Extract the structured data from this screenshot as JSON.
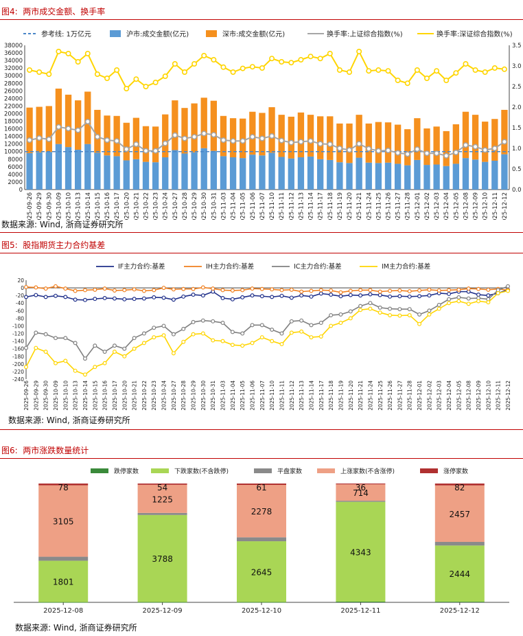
{
  "figures": {
    "fig4": {
      "title": "图4:  两市成交金额、换手率",
      "source": "数据来源: Wind, 浙商证券研究所"
    },
    "fig5": {
      "title": "图5:  股指期货主力合约基差",
      "source": "数据来源: Wind, 浙商证券研究所"
    },
    "fig6": {
      "title": "图6:  两市涨跌数量统计",
      "source": "数据来源: Wind, 浙商证券研究所"
    }
  },
  "chart_data": [
    {
      "id": "fig4",
      "type": "bar",
      "legend": [
        "参考线: 1万亿元",
        "沪市:成交金额(亿元)",
        "深市:成交金额(亿元)",
        "换手率:上证综合指数(%)",
        "换手率:深证综合指数(%)"
      ],
      "categories": [
        "2025-09-26",
        "2025-09-29",
        "2025-09-30",
        "2025-10-09",
        "2025-10-10",
        "2025-10-13",
        "2025-10-14",
        "2025-10-15",
        "2025-10-16",
        "2025-10-17",
        "2025-10-20",
        "2025-10-21",
        "2025-10-22",
        "2025-10-23",
        "2025-10-24",
        "2025-10-27",
        "2025-10-28",
        "2025-10-29",
        "2025-10-30",
        "2025-10-31",
        "2025-11-03",
        "2025-11-04",
        "2025-11-05",
        "2025-11-06",
        "2025-11-07",
        "2025-11-10",
        "2025-11-11",
        "2025-11-12",
        "2025-11-13",
        "2025-11-14",
        "2025-11-17",
        "2025-11-18",
        "2025-11-19",
        "2025-11-20",
        "2025-11-21",
        "2025-11-24",
        "2025-11-25",
        "2025-11-26",
        "2025-11-27",
        "2025-11-28",
        "2025-12-01",
        "2025-12-02",
        "2025-12-03",
        "2025-12-04",
        "2025-12-05",
        "2025-12-08",
        "2025-12-09",
        "2025-12-10",
        "2025-12-11",
        "2025-12-12"
      ],
      "sh": [
        9600,
        9800,
        9900,
        12000,
        11200,
        10500,
        12000,
        9700,
        9000,
        8800,
        7700,
        8000,
        7300,
        7200,
        8500,
        10400,
        9500,
        9800,
        10900,
        10200,
        8800,
        8500,
        8300,
        9200,
        9000,
        9700,
        8600,
        8200,
        8500,
        8700,
        8000,
        7800,
        7200,
        7000,
        8400,
        7100,
        7000,
        7100,
        6800,
        6400,
        7800,
        6500,
        6600,
        6200,
        6800,
        8300,
        7900,
        7300,
        7600,
        9300
      ],
      "sz": [
        12000,
        12000,
        12100,
        14600,
        13800,
        13000,
        13800,
        11300,
        10500,
        10600,
        9900,
        10900,
        9400,
        9400,
        11300,
        13100,
        12000,
        12900,
        13300,
        13200,
        10600,
        10300,
        10400,
        11300,
        11200,
        12000,
        11100,
        11000,
        11800,
        11000,
        11300,
        11500,
        10200,
        10400,
        11300,
        10300,
        10800,
        10600,
        10300,
        9500,
        11000,
        9600,
        10000,
        9200,
        10400,
        12200,
        11800,
        10600,
        11000,
        11700
      ],
      "shTurn": [
        1.2,
        1.25,
        1.22,
        1.52,
        1.48,
        1.44,
        1.65,
        1.28,
        1.2,
        1.18,
        0.98,
        1.1,
        0.94,
        0.94,
        1.12,
        1.32,
        1.24,
        1.28,
        1.36,
        1.33,
        1.2,
        1.18,
        1.18,
        1.28,
        1.24,
        1.3,
        1.19,
        1.14,
        1.16,
        1.18,
        1.11,
        1.1,
        1.0,
        0.96,
        1.11,
        0.99,
        0.94,
        0.95,
        0.89,
        0.86,
        0.98,
        0.88,
        0.88,
        0.82,
        0.9,
        1.08,
        1.04,
        0.96,
        1.0,
        1.16
      ],
      "szTurn": [
        2.9,
        2.85,
        2.8,
        3.35,
        3.3,
        3.1,
        3.3,
        2.8,
        2.7,
        2.9,
        2.45,
        2.68,
        2.5,
        2.6,
        2.75,
        3.05,
        2.85,
        3.05,
        3.25,
        3.15,
        2.97,
        2.85,
        2.94,
        2.98,
        2.95,
        3.18,
        3.1,
        3.08,
        3.15,
        3.23,
        3.18,
        3.3,
        2.9,
        2.85,
        3.35,
        2.88,
        2.9,
        2.88,
        2.65,
        2.58,
        2.9,
        2.7,
        2.88,
        2.65,
        2.83,
        3.05,
        2.9,
        2.85,
        2.95,
        2.92
      ],
      "reference": 10000,
      "ylim": [
        0,
        38000
      ],
      "y2lim": [
        0,
        3.5
      ]
    },
    {
      "id": "fig5",
      "type": "line",
      "legend": [
        "IF主力合约:基差",
        "IH主力合约:基差",
        "IC主力合约:基差",
        "IM主力合约:基差"
      ],
      "categories": [
        "2025-09-26",
        "2025-09-29",
        "2025-09-30",
        "2025-10-09",
        "2025-10-10",
        "2025-10-13",
        "2025-10-14",
        "2025-10-15",
        "2025-10-16",
        "2025-10-17",
        "2025-10-20",
        "2025-10-21",
        "2025-10-22",
        "2025-10-23",
        "2025-10-24",
        "2025-10-27",
        "2025-10-28",
        "2025-10-29",
        "2025-10-30",
        "2025-10-31",
        "2025-11-03",
        "2025-11-04",
        "2025-11-05",
        "2025-11-06",
        "2025-11-07",
        "2025-11-10",
        "2025-11-11",
        "2025-11-12",
        "2025-11-13",
        "2025-11-14",
        "2025-11-17",
        "2025-11-18",
        "2025-11-19",
        "2025-11-20",
        "2025-11-21",
        "2025-11-24",
        "2025-11-25",
        "2025-11-26",
        "2025-11-27",
        "2025-11-28",
        "2025-12-01",
        "2025-12-02",
        "2025-12-03",
        "2025-12-04",
        "2025-12-05",
        "2025-12-08",
        "2025-12-09",
        "2025-12-10",
        "2025-12-11",
        "2025-12-12"
      ],
      "series": [
        {
          "name": "IF主力合约:基差",
          "color": "#1f2f8a",
          "values": [
            -24,
            -19,
            -24,
            -21,
            -24,
            -31,
            -32,
            -29,
            -27,
            -28,
            -30,
            -29,
            -28,
            -25,
            -26,
            -31,
            -23,
            -18,
            -20,
            -10,
            -27,
            -30,
            -25,
            -20,
            -22,
            -24,
            -21,
            -26,
            -20,
            -23,
            -15,
            -18,
            -22,
            -19,
            -20,
            -17,
            -19,
            -23,
            -22,
            -23,
            -22,
            -20,
            -14,
            -16,
            -10,
            -10,
            -18,
            -20,
            -14,
            -5
          ]
        },
        {
          "name": "IH主力合约:基差",
          "color": "#f07f1e",
          "values": [
            2,
            1,
            -2,
            4,
            -2,
            -8,
            -6,
            -5,
            -2,
            -7,
            -6,
            -4,
            -8,
            -6,
            0,
            -4,
            -3,
            -3,
            1,
            -2,
            -6,
            -7,
            -6,
            -2,
            -3,
            -4,
            -6,
            -5,
            -10,
            -8,
            -6,
            -7,
            -12,
            -8,
            -6,
            -6,
            -10,
            -8,
            -7,
            -9,
            -7,
            -5,
            -7,
            -6,
            -5,
            -2,
            -3,
            -5,
            -3,
            -6
          ]
        },
        {
          "name": "IC主力合约:基差",
          "color": "#808080",
          "values": [
            -158,
            -118,
            -122,
            -132,
            -132,
            -145,
            -186,
            -152,
            -168,
            -152,
            -160,
            -132,
            -120,
            -105,
            -100,
            -122,
            -108,
            -90,
            -86,
            -88,
            -92,
            -116,
            -120,
            -98,
            -98,
            -110,
            -120,
            -88,
            -86,
            -98,
            -92,
            -72,
            -70,
            -62,
            -48,
            -40,
            -52,
            -55,
            -56,
            -56,
            -70,
            -60,
            -45,
            -30,
            -25,
            -28,
            -27,
            -30,
            -6,
            4
          ]
        },
        {
          "name": "IM主力合约:基差",
          "color": "#ffd500",
          "values": [
            -208,
            -158,
            -168,
            -198,
            -192,
            -218,
            -228,
            -208,
            -198,
            -168,
            -180,
            -160,
            -145,
            -130,
            -125,
            -172,
            -142,
            -122,
            -120,
            -138,
            -140,
            -150,
            -152,
            -145,
            -130,
            -140,
            -148,
            -118,
            -115,
            -130,
            -128,
            -100,
            -92,
            -80,
            -58,
            -55,
            -65,
            -72,
            -73,
            -72,
            -95,
            -70,
            -55,
            -40,
            -35,
            -42,
            -35,
            -38,
            -14,
            -8
          ]
        }
      ],
      "ylim": [
        -240,
        20
      ]
    },
    {
      "id": "fig6",
      "type": "bar",
      "stacked": true,
      "legend": [
        "跌停家数",
        "下跌家数(不含跌停)",
        "平盘家数",
        "上涨家数(不含涨停)",
        "涨停家数"
      ],
      "categories": [
        "2025-12-08",
        "2025-12-09",
        "2025-12-10",
        "2025-12-11",
        "2025-12-12"
      ],
      "series": [
        {
          "name": "跌停家数",
          "color": "#3a8a3a",
          "values": [
            8,
            12,
            12,
            30,
            27
          ]
        },
        {
          "name": "下跌家数(不含跌停)",
          "color": "#a9d655",
          "values": [
            1801,
            3788,
            2645,
            4343,
            2444
          ]
        },
        {
          "name": "平盘家数",
          "color": "#8a8a8a",
          "values": [
            175,
            89,
            172,
            45,
            158
          ]
        },
        {
          "name": "上涨家数(不含涨停)",
          "color": "#eea085",
          "values": [
            3105,
            1225,
            2278,
            714,
            2457
          ]
        },
        {
          "name": "涨停家数",
          "color": "#b03030",
          "values": [
            78,
            54,
            61,
            36,
            82
          ]
        }
      ]
    }
  ]
}
